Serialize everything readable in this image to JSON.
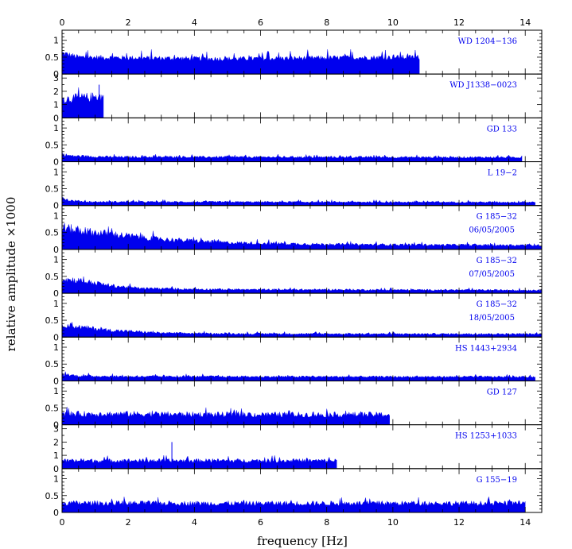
{
  "chart_data": {
    "type": "bar",
    "xlabel": "frequency [Hz]",
    "ylabel": "relative amplitude ×1000",
    "xlim": [
      0,
      14.5
    ],
    "x_ticks": [
      0,
      2,
      4,
      6,
      8,
      10,
      12,
      14
    ],
    "color": "#0000ee",
    "grid": false,
    "panels": [
      {
        "label": "WD 1204−136",
        "date": "",
        "ylim": [
          0,
          1.3
        ],
        "y_ticks": [
          0,
          0.5,
          1
        ],
        "y_tick_labels": [
          "0",
          "0.5",
          "1"
        ],
        "x_max_hz": 10.8,
        "envelope": {
          "x": [
            0,
            0.5,
            2,
            5,
            8,
            10.8
          ],
          "y": [
            0.62,
            0.5,
            0.48,
            0.45,
            0.48,
            0.5
          ]
        },
        "noise": 0.3,
        "spikes": []
      },
      {
        "label": "WD J1338−0023",
        "date": "",
        "ylim": [
          0,
          3.3
        ],
        "y_ticks": [
          0,
          1,
          2,
          3
        ],
        "y_tick_labels": [
          "0",
          "1",
          "2",
          "3"
        ],
        "x_max_hz": 1.25,
        "envelope": {
          "x": [
            0,
            0.6,
            1.25
          ],
          "y": [
            1.4,
            1.5,
            1.6
          ]
        },
        "noise": 0.5,
        "spikes": [
          {
            "x": 1.12,
            "y": 2.5
          }
        ]
      },
      {
        "label": "GD 133",
        "date": "",
        "ylim": [
          0,
          1.3
        ],
        "y_ticks": [
          0,
          0.5,
          1
        ],
        "y_tick_labels": [
          "0",
          "0.5",
          "1"
        ],
        "x_max_hz": 13.9,
        "envelope": {
          "x": [
            0,
            0.3,
            1.5,
            13.9
          ],
          "y": [
            0.22,
            0.17,
            0.14,
            0.13
          ]
        },
        "noise": 0.45,
        "spikes": []
      },
      {
        "label": "L 19−2",
        "date": "",
        "ylim": [
          0,
          1.3
        ],
        "y_ticks": [
          0,
          0.5,
          1
        ],
        "y_tick_labels": [
          "0",
          "0.5",
          "1"
        ],
        "x_max_hz": 14.3,
        "envelope": {
          "x": [
            0,
            0.2,
            0.8,
            14.3
          ],
          "y": [
            0.25,
            0.15,
            0.11,
            0.1
          ]
        },
        "noise": 0.45,
        "spikes": []
      },
      {
        "label": "G 185−32",
        "date": "06/05/2005",
        "ylim": [
          0,
          1.3
        ],
        "y_ticks": [
          0,
          0.5,
          1
        ],
        "y_tick_labels": [
          "0",
          "0.5",
          "1"
        ],
        "x_max_hz": 14.5,
        "envelope": {
          "x": [
            0,
            0.5,
            1.5,
            3,
            5,
            8,
            14.5
          ],
          "y": [
            0.65,
            0.55,
            0.45,
            0.3,
            0.2,
            0.15,
            0.12
          ]
        },
        "noise": 0.5,
        "spikes": []
      },
      {
        "label": "G 185−32",
        "date": "07/05/2005",
        "ylim": [
          0,
          1.3
        ],
        "y_ticks": [
          0,
          0.5,
          1
        ],
        "y_tick_labels": [
          "0",
          "0.5",
          "1"
        ],
        "x_max_hz": 14.5,
        "envelope": {
          "x": [
            0,
            0.5,
            1.5,
            2.5,
            5,
            14.5
          ],
          "y": [
            0.42,
            0.38,
            0.22,
            0.14,
            0.11,
            0.09
          ]
        },
        "noise": 0.5,
        "spikes": []
      },
      {
        "label": "G 185−32",
        "date": "18/05/2005",
        "ylim": [
          0,
          1.3
        ],
        "y_ticks": [
          0,
          0.5,
          1
        ],
        "y_tick_labels": [
          "0",
          "0.5",
          "1"
        ],
        "x_max_hz": 14.5,
        "envelope": {
          "x": [
            0,
            0.5,
            1.5,
            3,
            5,
            14.5
          ],
          "y": [
            0.38,
            0.3,
            0.2,
            0.12,
            0.1,
            0.09
          ]
        },
        "noise": 0.5,
        "spikes": []
      },
      {
        "label": "HS 1443+2934",
        "date": "",
        "ylim": [
          0,
          1.3
        ],
        "y_ticks": [
          0,
          0.5,
          1
        ],
        "y_tick_labels": [
          "0",
          "0.5",
          "1"
        ],
        "x_max_hz": 14.3,
        "envelope": {
          "x": [
            0,
            0.5,
            2,
            14.3
          ],
          "y": [
            0.2,
            0.15,
            0.13,
            0.12
          ]
        },
        "noise": 0.45,
        "spikes": []
      },
      {
        "label": "GD 127",
        "date": "",
        "ylim": [
          0,
          1.3
        ],
        "y_ticks": [
          0,
          0.5,
          1
        ],
        "y_tick_labels": [
          "0",
          "0.5",
          "1"
        ],
        "x_max_hz": 9.9,
        "envelope": {
          "x": [
            0,
            2,
            5,
            9.9
          ],
          "y": [
            0.32,
            0.32,
            0.3,
            0.3
          ]
        },
        "noise": 0.55,
        "spikes": []
      },
      {
        "label": "HS 1253+1033",
        "date": "",
        "ylim": [
          0,
          3.3
        ],
        "y_ticks": [
          0,
          1,
          2,
          3
        ],
        "y_tick_labels": [
          "0",
          "1",
          "2",
          "3"
        ],
        "x_max_hz": 8.3,
        "envelope": {
          "x": [
            0,
            4,
            8.3
          ],
          "y": [
            0.6,
            0.6,
            0.6
          ]
        },
        "noise": 0.5,
        "spikes": [
          {
            "x": 3.32,
            "y": 2.0
          }
        ]
      },
      {
        "label": "G 155−19",
        "date": "",
        "ylim": [
          0,
          1.3
        ],
        "y_ticks": [
          0,
          0.5,
          1
        ],
        "y_tick_labels": [
          "0",
          "0.5",
          "1"
        ],
        "x_max_hz": 14.0,
        "envelope": {
          "x": [
            0,
            3,
            7,
            14.0
          ],
          "y": [
            0.28,
            0.27,
            0.27,
            0.27
          ]
        },
        "noise": 0.55,
        "spikes": []
      }
    ]
  }
}
